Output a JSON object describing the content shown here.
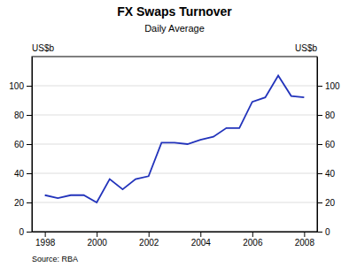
{
  "chart_data": {
    "type": "line",
    "title": "FX Swaps Turnover",
    "subtitle": "Daily Average",
    "ylabel": "US$b",
    "y2label": "US$b",
    "source": "Source: RBA",
    "color": "#2233bb",
    "x": [
      1998,
      1998.5,
      1999,
      1999.5,
      2000,
      2000.5,
      2001,
      2001.5,
      2002,
      2002.5,
      2003,
      2003.5,
      2004,
      2004.5,
      2005,
      2005.5,
      2006,
      2006.5,
      2007,
      2007.5,
      2008
    ],
    "values": [
      25,
      23,
      25,
      25,
      20,
      36,
      29,
      36,
      38,
      61,
      61,
      60,
      63,
      65,
      71,
      71,
      89,
      92,
      107,
      93,
      92
    ],
    "xlim": [
      1997.5,
      2008.5
    ],
    "xticks": [
      1998,
      2000,
      2002,
      2004,
      2006,
      2008
    ],
    "ylim": [
      0,
      120
    ],
    "yticks": [
      0,
      20,
      40,
      60,
      80,
      100
    ],
    "y2lim": [
      0,
      120
    ],
    "y2ticks": [
      0,
      20,
      40,
      60,
      80,
      100
    ],
    "grid": true
  }
}
